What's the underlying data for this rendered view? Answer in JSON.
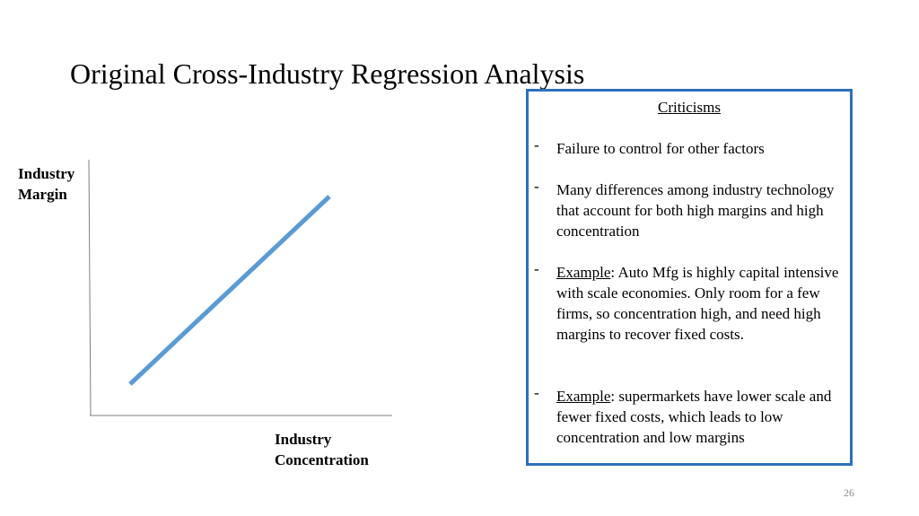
{
  "slide": {
    "title": "Original Cross-Industry Regression Analysis",
    "page_number": "26"
  },
  "chart": {
    "y_axis_label_line1": "Industry",
    "y_axis_label_line2": "Margin",
    "x_axis_label_line1": "Industry",
    "x_axis_label_line2": "Concentration",
    "line_color": "#5b9bd5",
    "axis_color": "#7f7f7f"
  },
  "criticisms": {
    "heading": "Criticisms",
    "bullet_marker": "-",
    "items": [
      {
        "text": "Failure to control for other factors"
      },
      {
        "text": "Many differences among industry technology that account for both high margins and high concentration"
      },
      {
        "lead": "Example",
        "text": ": Auto Mfg is highly capital intensive with scale economies. Only room for a few firms, so concentration high, and need high margins to recover fixed costs."
      },
      {
        "lead": "Example",
        "text": ": supermarkets have lower scale and fewer fixed costs, which leads to low concentration and low margins"
      }
    ],
    "border_color": "#2e6fb9"
  }
}
